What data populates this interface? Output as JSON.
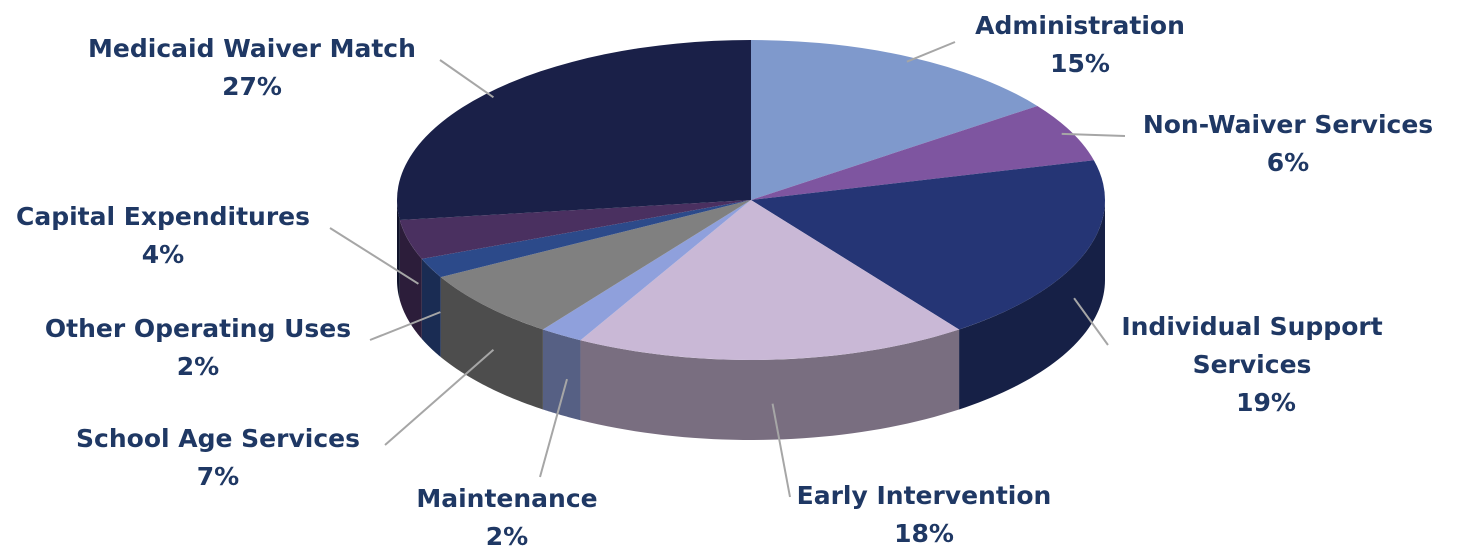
{
  "chart_data": {
    "type": "pie",
    "categories": [
      "Administration",
      "Non-Waiver Services",
      "Individual Support Services",
      "Early Intervention",
      "Maintenance",
      "School Age Services",
      "Other Operating Uses",
      "Capital Expenditures",
      "Medicaid Waiver Match"
    ],
    "values": [
      15,
      6,
      19,
      18,
      2,
      7,
      2,
      4,
      27
    ],
    "value_labels": [
      "15%",
      "6%",
      "19%",
      "18%",
      "2%",
      "7%",
      "2%",
      "4%",
      "27%"
    ],
    "colors": [
      "#7f99cc",
      "#7e55a0",
      "#253575",
      "#c9b8d6",
      "#8fa0dc",
      "#808080",
      "#2c4a8a",
      "#4a3060",
      "#1a2048"
    ]
  }
}
